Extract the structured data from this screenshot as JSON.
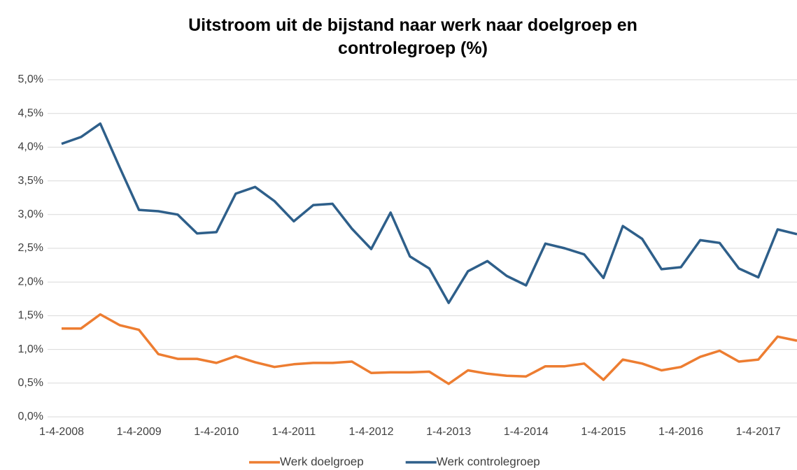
{
  "chart_data": {
    "type": "line",
    "title": "Uitstroom uit de bijstand naar werk naar doelgroep en controlegroep (%)",
    "categories": [
      "1-4-2008",
      null,
      null,
      null,
      "1-4-2009",
      null,
      null,
      null,
      "1-4-2010",
      null,
      null,
      null,
      "1-4-2011",
      null,
      null,
      null,
      "1-4-2012",
      null,
      null,
      null,
      "1-4-2013",
      null,
      null,
      null,
      "1-4-2014",
      null,
      null,
      null,
      "1-4-2015",
      null,
      null,
      null,
      "1-4-2016",
      null,
      null,
      null,
      "1-4-2017",
      null,
      null
    ],
    "series": [
      {
        "name": "Werk doelgroep",
        "color": "#ed7d31",
        "values": [
          1.31,
          1.31,
          1.52,
          1.36,
          1.29,
          0.93,
          0.86,
          0.86,
          0.8,
          0.9,
          0.81,
          0.74,
          0.78,
          0.8,
          0.8,
          0.82,
          0.65,
          0.66,
          0.66,
          0.67,
          0.49,
          0.69,
          0.64,
          0.61,
          0.6,
          0.75,
          0.75,
          0.79,
          0.55,
          0.85,
          0.79,
          0.69,
          0.74,
          0.89,
          0.98,
          0.82,
          0.85,
          1.19,
          1.13
        ]
      },
      {
        "name": "Werk controlegroep",
        "color": "#2e5f8a",
        "values": [
          4.05,
          4.15,
          4.35,
          3.7,
          3.07,
          3.05,
          3.0,
          2.72,
          2.74,
          3.31,
          3.41,
          3.2,
          2.9,
          3.14,
          3.16,
          2.79,
          2.49,
          3.03,
          2.38,
          2.2,
          1.69,
          2.16,
          2.31,
          2.09,
          1.95,
          2.57,
          2.5,
          2.41,
          2.06,
          2.83,
          2.64,
          2.19,
          2.22,
          2.62,
          2.58,
          2.2,
          2.07,
          2.78,
          2.71
        ]
      }
    ],
    "ylim": [
      0,
      5
    ],
    "yticks": [
      {
        "value": 0,
        "label": "0,0%"
      },
      {
        "value": 0.5,
        "label": "0,5%"
      },
      {
        "value": 1,
        "label": "1,0%"
      },
      {
        "value": 1.5,
        "label": "1,5%"
      },
      {
        "value": 2,
        "label": "2,0%"
      },
      {
        "value": 2.5,
        "label": "2,5%"
      },
      {
        "value": 3,
        "label": "3,0%"
      },
      {
        "value": 3.5,
        "label": "3,5%"
      },
      {
        "value": 4,
        "label": "4,0%"
      },
      {
        "value": 4.5,
        "label": "4,5%"
      },
      {
        "value": 5,
        "label": "5,0%"
      }
    ],
    "grid": true,
    "legend": "bottom"
  }
}
